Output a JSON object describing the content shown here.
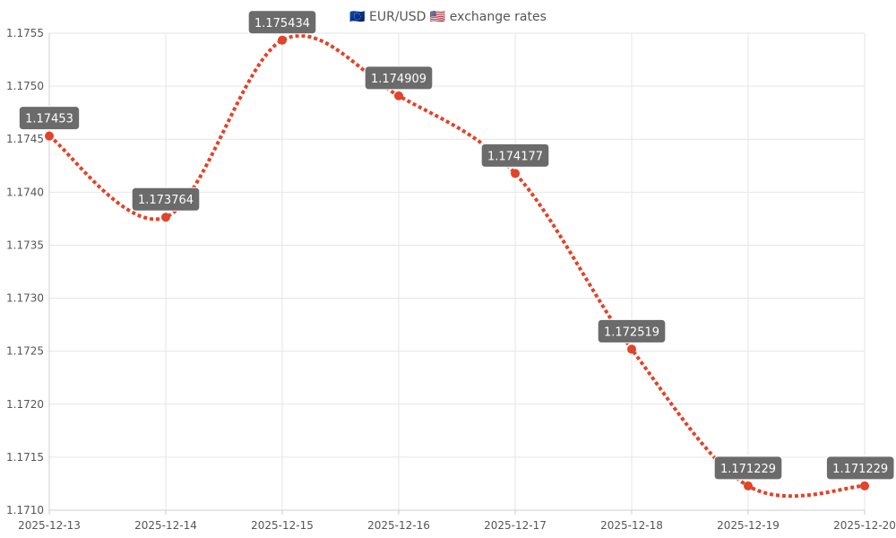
{
  "chart_data": {
    "type": "line",
    "title_parts": [
      "EUR/USD",
      "exchange rates"
    ],
    "title_icons": [
      "eu-flag-icon",
      "us-flag-icon"
    ],
    "x": [
      "2025-12-13",
      "2025-12-14",
      "2025-12-15",
      "2025-12-16",
      "2025-12-17",
      "2025-12-18",
      "2025-12-19",
      "2025-12-20"
    ],
    "series": [
      {
        "values": [
          1.17453,
          1.173764,
          1.175434,
          1.174909,
          1.174177,
          1.172519,
          1.171229,
          1.171229
        ],
        "labels": [
          "1.17453",
          "1.173764",
          "1.175434",
          "1.174909",
          "1.174177",
          "1.172519",
          "1.171229",
          "1.171229"
        ],
        "color": "#e0442a",
        "line_style": "dotted",
        "smooth": true
      }
    ],
    "y_ticks": [
      "1.1710",
      "1.1715",
      "1.1720",
      "1.1725",
      "1.1730",
      "1.1735",
      "1.1740",
      "1.1745",
      "1.1750",
      "1.1755"
    ],
    "ylim": [
      1.171,
      1.1755
    ],
    "grid": true,
    "legend": "none",
    "label_box_color": "#6b6b6b",
    "grid_color": "#e6e6e6"
  }
}
